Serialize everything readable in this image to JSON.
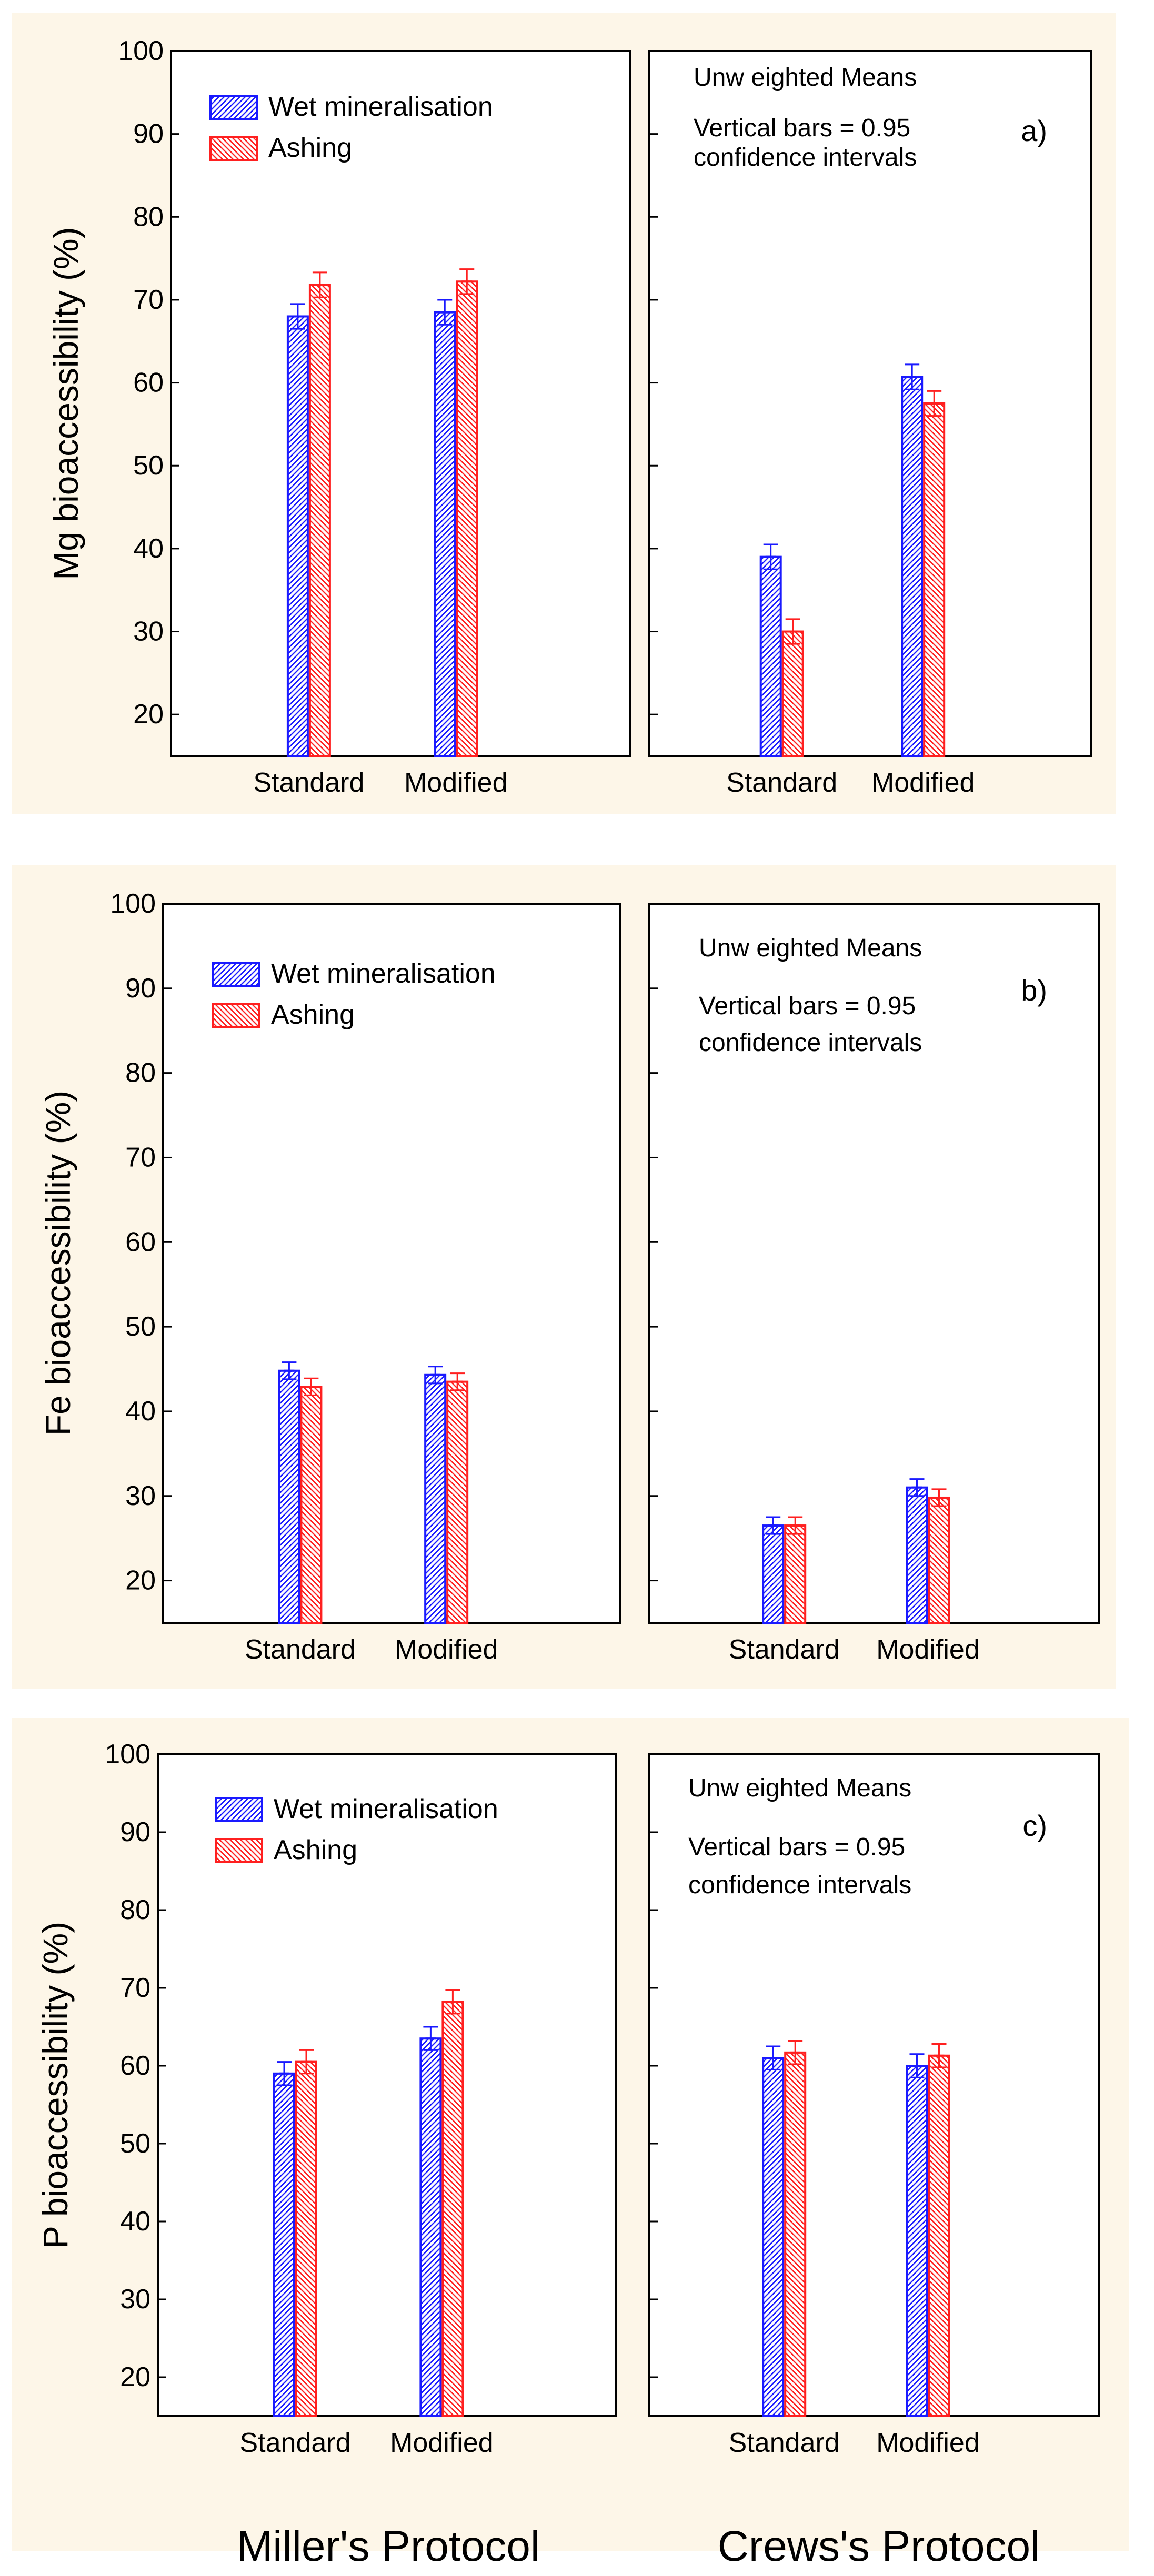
{
  "colors": {
    "panel_bg": "#fdf6e8",
    "blue": "#1a1aff",
    "red": "#ff2020"
  },
  "footer": {
    "left": "Miller's Protocol",
    "right": "Crews's Protocol"
  },
  "chart_data": [
    {
      "type": "bar",
      "panel_tag": "a)",
      "ylabel": "Mg bioaccessibility (%)",
      "ylim": [
        15,
        100
      ],
      "yticks": [
        20,
        30,
        40,
        50,
        60,
        70,
        80,
        90,
        100
      ],
      "legend": [
        "Wet mineralisation",
        "Ashing"
      ],
      "notes": [
        "Unw eighted Means",
        "Vertical bars = 0.95",
        "confidence intervals"
      ],
      "subplots": [
        {
          "protocol": "Miller's Protocol",
          "categories": [
            "Standard",
            "Modified"
          ],
          "series": [
            {
              "name": "Wet mineralisation",
              "values": [
                68,
                68.5
              ],
              "err": [
                1.5,
                1.5
              ]
            },
            {
              "name": "Ashing",
              "values": [
                71.8,
                72.2
              ],
              "err": [
                1.5,
                1.5
              ]
            }
          ]
        },
        {
          "protocol": "Crews's Protocol",
          "categories": [
            "Standard",
            "Modified"
          ],
          "series": [
            {
              "name": "Wet mineralisation",
              "values": [
                39,
                60.7
              ],
              "err": [
                1.5,
                1.5
              ]
            },
            {
              "name": "Ashing",
              "values": [
                30,
                57.5
              ],
              "err": [
                1.5,
                1.5
              ]
            }
          ]
        }
      ]
    },
    {
      "type": "bar",
      "panel_tag": "b)",
      "ylabel": "Fe bioaccessibility (%)",
      "ylim": [
        15,
        100
      ],
      "yticks": [
        20,
        30,
        40,
        50,
        60,
        70,
        80,
        90,
        100
      ],
      "legend": [
        "Wet mineralisation",
        "Ashing"
      ],
      "notes": [
        "Unw eighted Means",
        "Vertical bars = 0.95",
        "confidence intervals"
      ],
      "subplots": [
        {
          "protocol": "Miller's Protocol",
          "categories": [
            "Standard",
            "Modified"
          ],
          "series": [
            {
              "name": "Wet mineralisation",
              "values": [
                44.8,
                44.3
              ],
              "err": [
                1,
                1
              ]
            },
            {
              "name": "Ashing",
              "values": [
                42.9,
                43.5
              ],
              "err": [
                1,
                1
              ]
            }
          ]
        },
        {
          "protocol": "Crews's Protocol",
          "categories": [
            "Standard",
            "Modified"
          ],
          "series": [
            {
              "name": "Wet mineralisation",
              "values": [
                26.5,
                31
              ],
              "err": [
                1,
                1
              ]
            },
            {
              "name": "Ashing",
              "values": [
                26.5,
                29.8
              ],
              "err": [
                1,
                1
              ]
            }
          ]
        }
      ]
    },
    {
      "type": "bar",
      "panel_tag": "c)",
      "ylabel": "P bioaccessibility (%)",
      "ylim": [
        15,
        100
      ],
      "yticks": [
        20,
        30,
        40,
        50,
        60,
        70,
        80,
        90,
        100
      ],
      "legend": [
        "Wet mineralisation",
        "Ashing"
      ],
      "notes": [
        "Unw eighted Means",
        "Vertical bars = 0.95",
        "confidence intervals"
      ],
      "subplots": [
        {
          "protocol": "Miller's Protocol",
          "categories": [
            "Standard",
            "Modified"
          ],
          "series": [
            {
              "name": "Wet mineralisation",
              "values": [
                59,
                63.5
              ],
              "err": [
                1.5,
                1.5
              ]
            },
            {
              "name": "Ashing",
              "values": [
                60.5,
                68.2
              ],
              "err": [
                1.5,
                1.5
              ]
            }
          ]
        },
        {
          "protocol": "Crews's Protocol",
          "categories": [
            "Standard",
            "Modified"
          ],
          "series": [
            {
              "name": "Wet mineralisation",
              "values": [
                61,
                60
              ],
              "err": [
                1.5,
                1.5
              ]
            },
            {
              "name": "Ashing",
              "values": [
                61.7,
                61.3
              ],
              "err": [
                1.5,
                1.5
              ]
            }
          ]
        }
      ]
    }
  ]
}
